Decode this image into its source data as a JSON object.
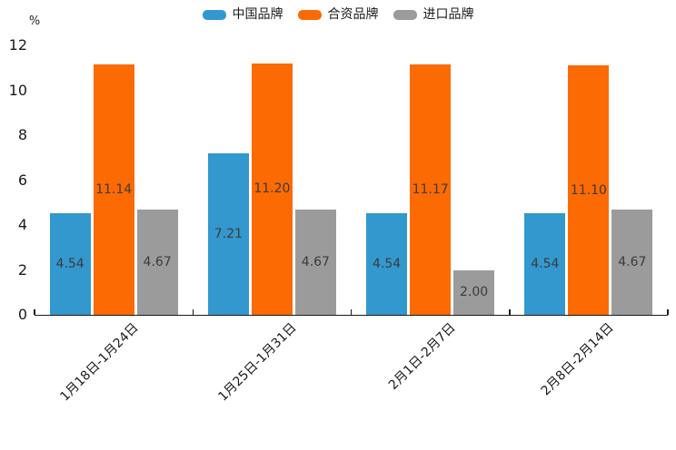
{
  "chart_data": {
    "type": "bar",
    "title": "",
    "unit_label": "%",
    "categories": [
      "1月18日-1月24日",
      "1月25日-1月31日",
      "2月1日-2月7日",
      "2月8日-2月14日"
    ],
    "series": [
      {
        "name": "中国品牌",
        "color": "#3398CE",
        "values": [
          4.54,
          7.21,
          4.54,
          4.54
        ]
      },
      {
        "name": "合资品牌",
        "color": "#FC6A03",
        "values": [
          11.14,
          11.2,
          11.17,
          11.1
        ]
      },
      {
        "name": "进口品牌",
        "color": "#9B9B9B",
        "values": [
          4.67,
          4.67,
          2.0,
          4.67
        ]
      }
    ],
    "ylim": [
      0,
      12
    ],
    "yticks": [
      0,
      2,
      4,
      6,
      8,
      10,
      12
    ],
    "value_label_decimals": 2,
    "grid": false,
    "legend_position": "top"
  }
}
